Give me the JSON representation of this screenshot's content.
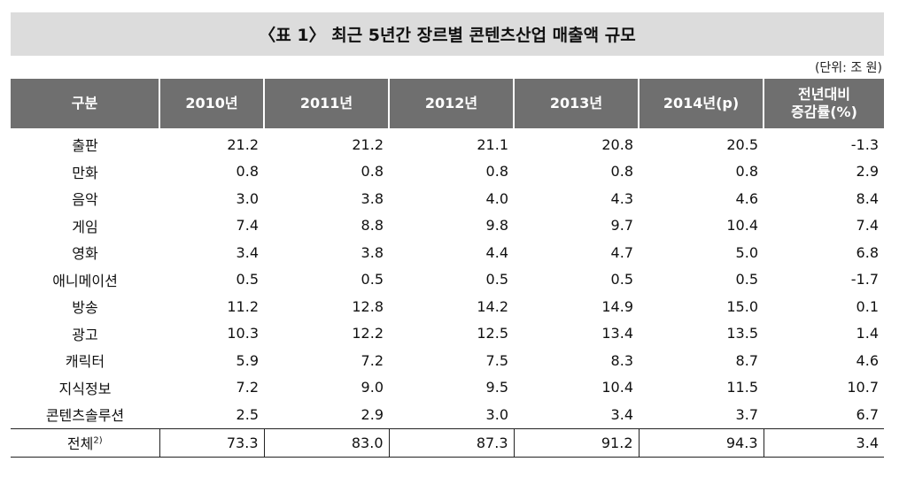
{
  "title": "〈표 1〉 최근 5년간 장르별 콘텐츠산업 매출액 규모",
  "unit": "(단위: 조 원)",
  "headers": [
    "구분",
    "2010년",
    "2011년",
    "2012년",
    "2013년",
    "2014년(p)",
    "전년대비",
    "증감률(%)"
  ],
  "rows": [
    {
      "cat": "출판",
      "v": [
        "21.2",
        "21.2",
        "21.1",
        "20.8",
        "20.5",
        "-1.3"
      ]
    },
    {
      "cat": "만화",
      "v": [
        "0.8",
        "0.8",
        "0.8",
        "0.8",
        "0.8",
        "2.9"
      ]
    },
    {
      "cat": "음악",
      "v": [
        "3.0",
        "3.8",
        "4.0",
        "4.3",
        "4.6",
        "8.4"
      ]
    },
    {
      "cat": "게임",
      "v": [
        "7.4",
        "8.8",
        "9.8",
        "9.7",
        "10.4",
        "7.4"
      ]
    },
    {
      "cat": "영화",
      "v": [
        "3.4",
        "3.8",
        "4.4",
        "4.7",
        "5.0",
        "6.8"
      ]
    },
    {
      "cat": "애니메이션",
      "v": [
        "0.5",
        "0.5",
        "0.5",
        "0.5",
        "0.5",
        "-1.7"
      ]
    },
    {
      "cat": "방송",
      "v": [
        "11.2",
        "12.8",
        "14.2",
        "14.9",
        "15.0",
        "0.1"
      ]
    },
    {
      "cat": "광고",
      "v": [
        "10.3",
        "12.2",
        "12.5",
        "13.4",
        "13.5",
        "1.4"
      ]
    },
    {
      "cat": "캐릭터",
      "v": [
        "5.9",
        "7.2",
        "7.5",
        "8.3",
        "8.7",
        "4.6"
      ]
    },
    {
      "cat": "지식정보",
      "v": [
        "7.2",
        "9.0",
        "9.5",
        "10.4",
        "11.5",
        "10.7"
      ]
    },
    {
      "cat": "콘텐츠솔루션",
      "v": [
        "2.5",
        "2.9",
        "3.0",
        "3.4",
        "3.7",
        "6.7"
      ]
    }
  ],
  "total": {
    "cat": "전체",
    "sup": "2)",
    "v": [
      "73.3",
      "83.0",
      "87.3",
      "91.2",
      "94.3",
      "3.4"
    ]
  }
}
